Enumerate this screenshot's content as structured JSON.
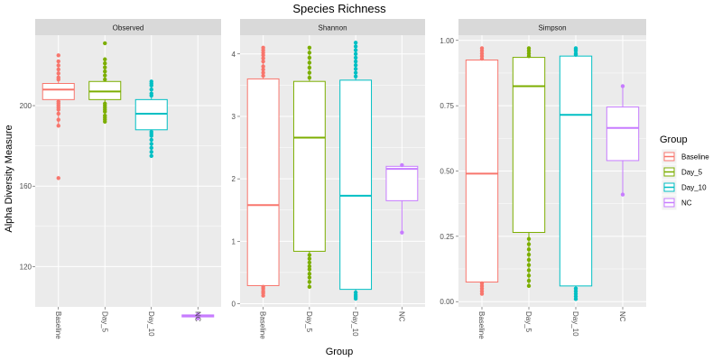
{
  "chart_data": {
    "type": "box",
    "title": "Species Richness",
    "xlabel": "Group",
    "ylabel": "Alpha Diversity Measure",
    "categories": [
      "Baseline",
      "Day_5",
      "Day_10",
      "NC"
    ],
    "legend": {
      "title": "Group",
      "position": "right",
      "entries": [
        {
          "name": "Baseline",
          "color": "#F8766D"
        },
        {
          "name": "Day_5",
          "color": "#7CAE00"
        },
        {
          "name": "Day_10",
          "color": "#00BFC4"
        },
        {
          "name": "NC",
          "color": "#C77CFF"
        }
      ]
    },
    "grid": true,
    "panels": [
      {
        "name": "Observed",
        "ylim": [
          100,
          235
        ],
        "yticks": [
          120,
          160,
          200
        ],
        "ytick_labels": [
          "120",
          "160",
          "200"
        ],
        "boxes": [
          {
            "group": "Baseline",
            "lower": 190,
            "q1": 203,
            "median": 208,
            "q3": 211,
            "upper": 222,
            "outliers": [
              164,
              190,
              193,
              196,
              198,
              199,
              200,
              201,
              202,
              213,
              214,
              216,
              218,
              220,
              222,
              225
            ]
          },
          {
            "group": "Day_5",
            "lower": 193,
            "q1": 203,
            "median": 207,
            "q3": 212,
            "upper": 224,
            "outliers": [
              192,
              193,
              194,
              195,
              197,
              198,
              199,
              200,
              201,
              213,
              215,
              217,
              219,
              221,
              223,
              231
            ]
          },
          {
            "group": "Day_10",
            "lower": 175,
            "q1": 188,
            "median": 196,
            "q3": 203,
            "upper": 212,
            "outliers": [
              175,
              177,
              179,
              181,
              183,
              185,
              186,
              187,
              205,
              206,
              208,
              210,
              211,
              212
            ]
          },
          {
            "group": "NC",
            "lower": 94,
            "q1": 95,
            "median": 95.5,
            "q3": 96,
            "upper": 96.5,
            "outliers": [
              94.3,
              96.2
            ]
          }
        ]
      },
      {
        "name": "Shannon",
        "ylim": [
          -0.05,
          4.3
        ],
        "yticks": [
          0,
          1,
          2,
          3,
          4
        ],
        "ytick_labels": [
          "0",
          "1",
          "2",
          "3",
          "4"
        ],
        "boxes": [
          {
            "group": "Baseline",
            "lower": 0.15,
            "q1": 0.29,
            "median": 1.58,
            "q3": 3.6,
            "upper": 4.1,
            "outliers": [
              0.13,
              0.17,
              0.2,
              0.24,
              0.27,
              3.65,
              3.7,
              3.75,
              3.8,
              3.88,
              3.93,
              3.98,
              4.02,
              4.06,
              4.1
            ]
          },
          {
            "group": "Day_5",
            "lower": 0.25,
            "q1": 0.84,
            "median": 2.66,
            "q3": 3.56,
            "upper": 4.1,
            "outliers": [
              0.27,
              0.35,
              0.42,
              0.48,
              0.55,
              0.6,
              0.66,
              0.72,
              0.78,
              3.62,
              3.7,
              3.78,
              3.86,
              3.94,
              4.02,
              4.1
            ]
          },
          {
            "group": "Day_10",
            "lower": 0.08,
            "q1": 0.23,
            "median": 1.73,
            "q3": 3.58,
            "upper": 4.2,
            "outliers": [
              0.08,
              0.11,
              0.14,
              0.18,
              3.64,
              3.7,
              3.76,
              3.82,
              3.88,
              3.94,
              4.0,
              4.06,
              4.12,
              4.18
            ]
          },
          {
            "group": "NC",
            "lower": 1.14,
            "q1": 1.65,
            "median": 2.16,
            "q3": 2.2,
            "upper": 2.23,
            "outliers": [
              1.14,
              2.22
            ]
          }
        ]
      },
      {
        "name": "Simpson",
        "ylim": [
          -0.02,
          1.02
        ],
        "yticks": [
          0,
          0.25,
          0.5,
          0.75,
          1
        ],
        "ytick_labels": [
          "0.00",
          "0.25",
          "0.50",
          "0.75",
          "1.00"
        ],
        "boxes": [
          {
            "group": "Baseline",
            "lower": 0.03,
            "q1": 0.075,
            "median": 0.49,
            "q3": 0.925,
            "upper": 0.97,
            "outliers": [
              0.03,
              0.04,
              0.05,
              0.06,
              0.07,
              0.93,
              0.94,
              0.95,
              0.96,
              0.97
            ]
          },
          {
            "group": "Day_5",
            "lower": 0.06,
            "q1": 0.265,
            "median": 0.825,
            "q3": 0.935,
            "upper": 0.97,
            "outliers": [
              0.06,
              0.08,
              0.1,
              0.12,
              0.14,
              0.16,
              0.18,
              0.2,
              0.22,
              0.24,
              0.94,
              0.95,
              0.96,
              0.97
            ]
          },
          {
            "group": "Day_10",
            "lower": 0.01,
            "q1": 0.06,
            "median": 0.715,
            "q3": 0.94,
            "upper": 0.97,
            "outliers": [
              0.01,
              0.02,
              0.03,
              0.04,
              0.05,
              0.945,
              0.95,
              0.96,
              0.965,
              0.97
            ]
          },
          {
            "group": "NC",
            "lower": 0.41,
            "q1": 0.54,
            "median": 0.665,
            "q3": 0.745,
            "upper": 0.825,
            "outliers": [
              0.41,
              0.825
            ]
          }
        ]
      }
    ]
  }
}
